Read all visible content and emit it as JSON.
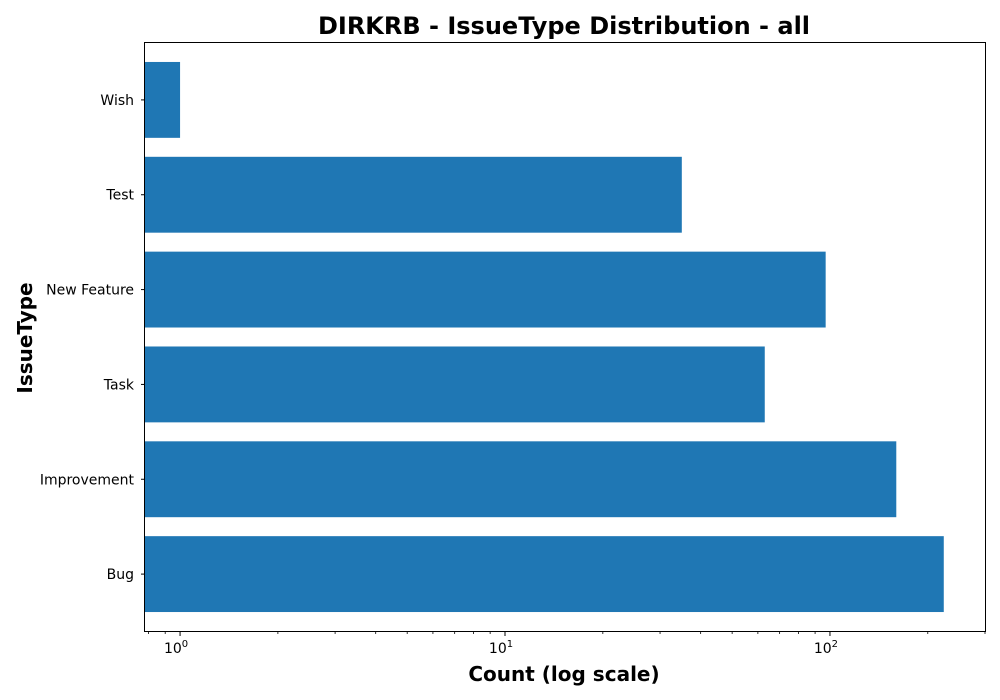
{
  "chart_data": {
    "type": "bar",
    "orientation": "horizontal",
    "title": "DIRKRB - IssueType Distribution - all",
    "xlabel": "Count (log scale)",
    "ylabel": "IssueType",
    "x_scale": "log",
    "xlim": [
      0.78,
      300
    ],
    "x_ticks": [
      {
        "value": 1,
        "base": "10",
        "exp": "0"
      },
      {
        "value": 10,
        "base": "10",
        "exp": "1"
      },
      {
        "value": 100,
        "base": "10",
        "exp": "2"
      }
    ],
    "categories": [
      "Bug",
      "Improvement",
      "Task",
      "New Feature",
      "Test",
      "Wish"
    ],
    "values": [
      224,
      160,
      63,
      97,
      35,
      1
    ],
    "bar_color": "#1f77b4",
    "grid": false,
    "legend": "none"
  }
}
